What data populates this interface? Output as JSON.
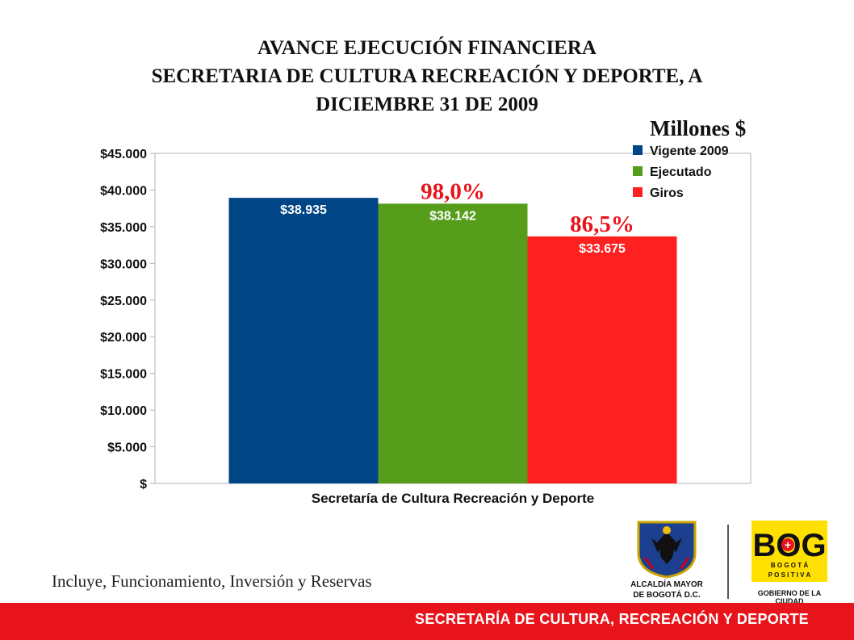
{
  "title_lines": [
    "AVANCE EJECUCIÓN FINANCIERA",
    "SECRETARIA DE CULTURA RECREACIÓN Y DEPORTE,  A",
    "DICIEMBRE  31 DE 2009"
  ],
  "units_label": "Millones $",
  "chart_data": {
    "type": "bar",
    "categories": [
      "Secretaría de Cultura Recreación y Deporte"
    ],
    "series": [
      {
        "name": "Vigente 2009",
        "values": [
          38935
        ],
        "color": "#004586",
        "label": "$38.935"
      },
      {
        "name": "Ejecutado",
        "values": [
          38142
        ],
        "color": "#579d1c",
        "label": "$38.142"
      },
      {
        "name": "Giros",
        "values": [
          33675
        ],
        "color": "#ff2020",
        "label": "$33.675"
      }
    ],
    "annotations": [
      {
        "series": "Ejecutado",
        "text": "98,0%"
      },
      {
        "series": "Giros",
        "text": "86,5%"
      }
    ],
    "ylim": [
      0,
      45000
    ],
    "yticks": [
      0,
      5000,
      10000,
      15000,
      20000,
      25000,
      30000,
      35000,
      40000,
      45000
    ],
    "ytick_labels": [
      "$",
      "$5.000",
      "$10.000",
      "$15.000",
      "$20.000",
      "$25.000",
      "$30.000",
      "$35.000",
      "$40.000",
      "$45.000"
    ],
    "legend_position": "top-right",
    "grid": false
  },
  "footnote": "Incluye, Funcionamiento, Inversión y Reservas",
  "logos": {
    "alcaldia_caption_1": "ALCALDÍA MAYOR",
    "alcaldia_caption_2": "DE BOGOTÁ D.C.",
    "bog_text": "BOG",
    "bog_subtext": "B O G O T Á",
    "bog_subtext2": "P O S I T I V A",
    "bog_caption": "GOBIERNO DE LA CIUDAD"
  },
  "footer_text": "SECRETARÍA DE CULTURA, RECREACIÓN Y DEPORTE"
}
